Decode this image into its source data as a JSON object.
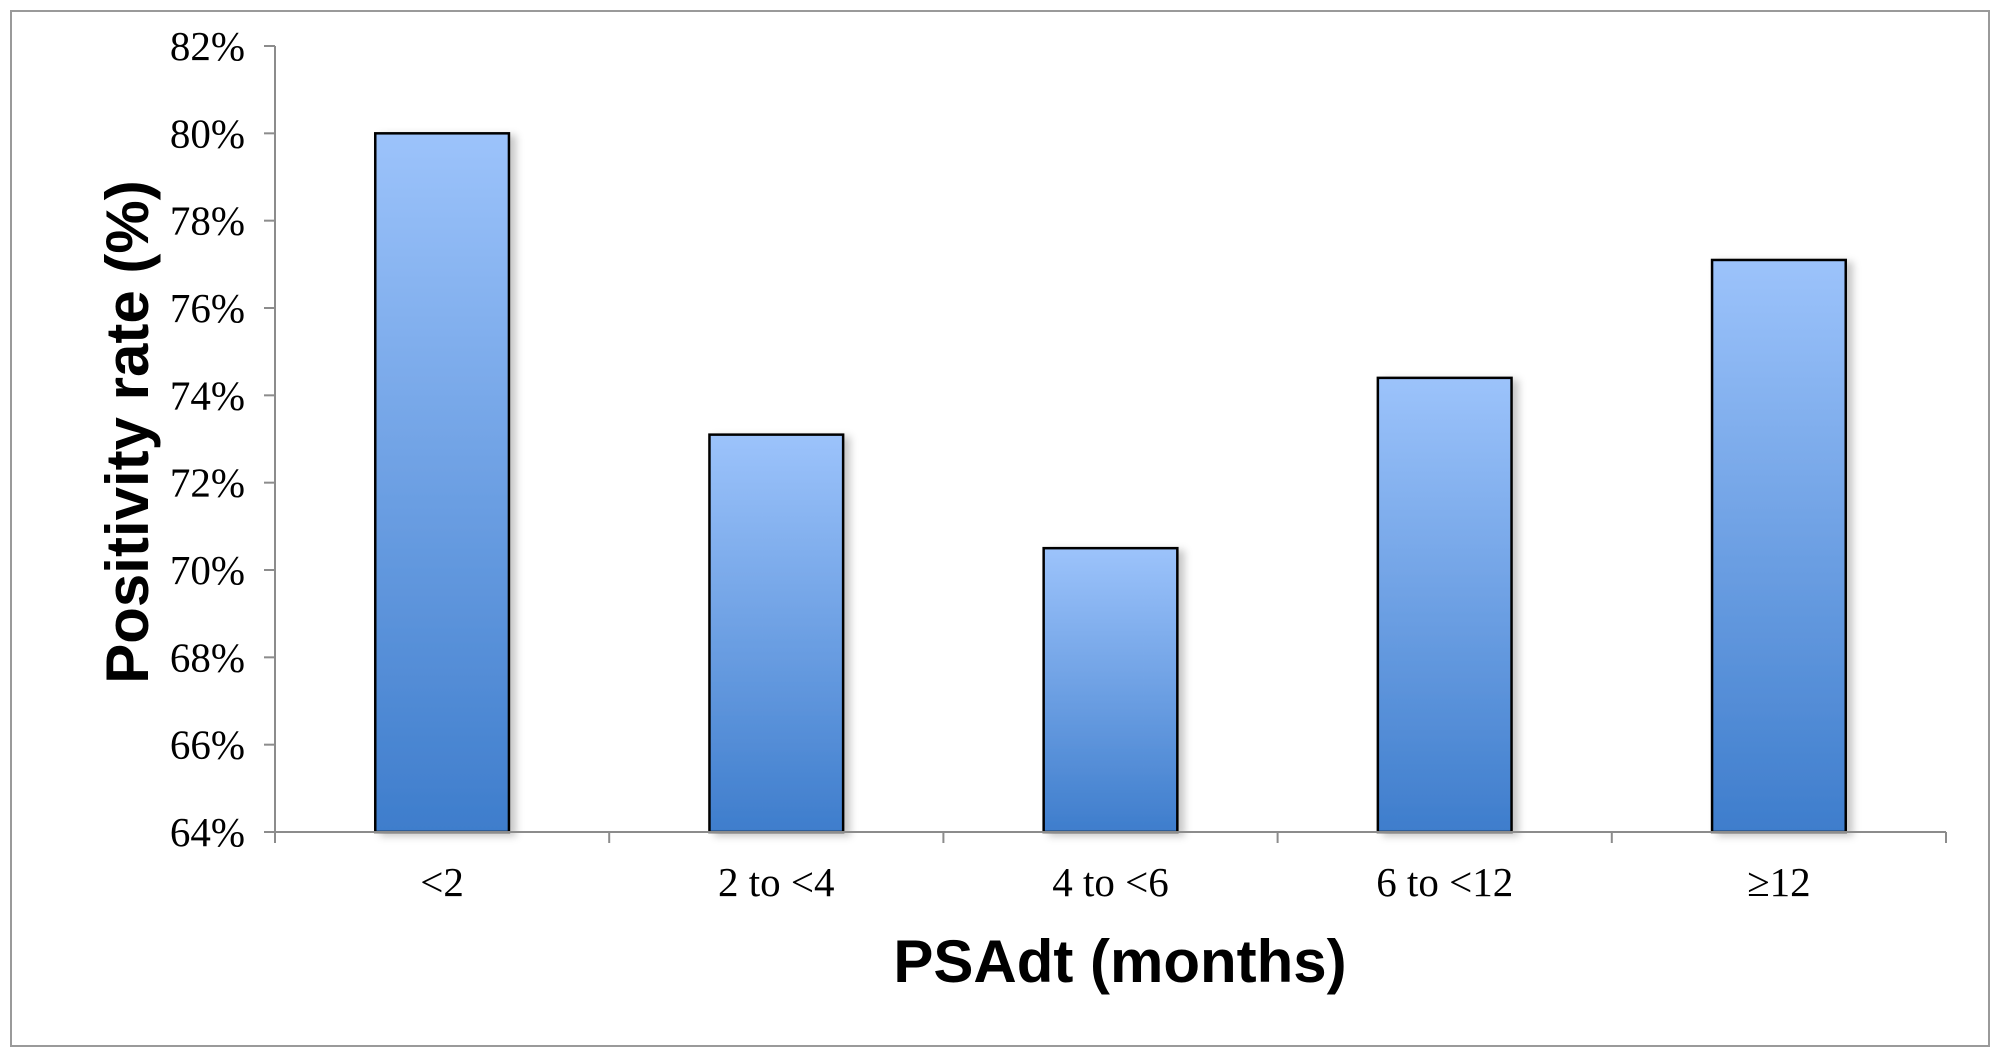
{
  "chart_data": {
    "type": "bar",
    "categories": [
      "<2",
      "2 to <4",
      "4 to <6",
      "6 to <12",
      "≥12"
    ],
    "values": [
      80.0,
      73.1,
      70.5,
      74.4,
      77.1
    ],
    "ylim": [
      64,
      82
    ],
    "ytick_step": 2,
    "ytick_suffix": "%",
    "ytick_labels": [
      "64%",
      "66%",
      "68%",
      "70%",
      "72%",
      "74%",
      "76%",
      "78%",
      "80%",
      "82%"
    ],
    "xlabel": "PSAdt (months)",
    "ylabel": "Positivity rate (%)",
    "grid": false,
    "legend": "none",
    "bar_gradient_top": "#9cc3fb",
    "bar_gradient_bottom": "#3e7dcc",
    "bar_outline": "#000000",
    "axis_color": "#8c8c8c"
  }
}
